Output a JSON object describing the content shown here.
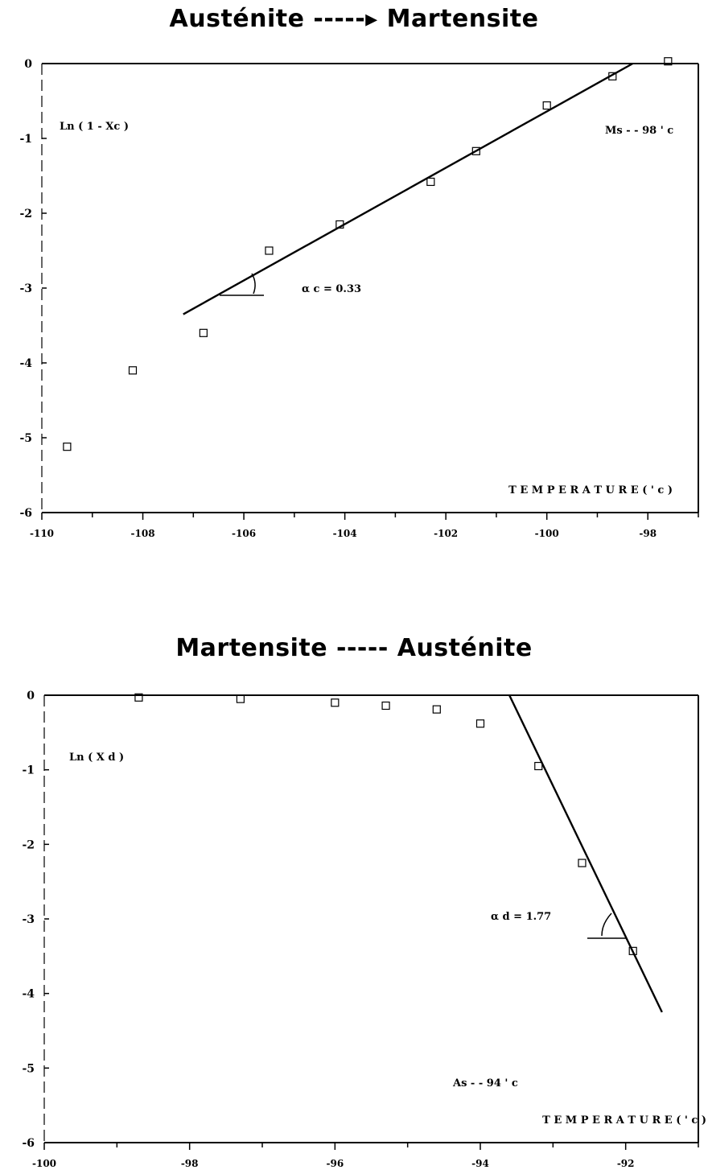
{
  "chart_data": [
    {
      "type": "scatter",
      "title": "Austénite -----▸ Martensite",
      "ylabel": "Ln ( 1 - Xc )",
      "xlabel": "T E M P E R A T U R E  ( ' c )",
      "xlim": [
        -110,
        -97
      ],
      "ylim": [
        -6,
        0
      ],
      "xticks": [
        -110,
        -108,
        -106,
        -104,
        -102,
        -100,
        -98
      ],
      "xtick_labels": [
        "-110",
        "-108",
        "-106",
        "-104",
        "-102",
        "-100",
        "-98"
      ],
      "yticks": [
        0,
        -1,
        -2,
        -3,
        -4,
        -5,
        -6
      ],
      "ytick_labels": [
        "0",
        "-1",
        "-2",
        "-3",
        "-4",
        "-5",
        "-6"
      ],
      "points": [
        [
          -109.5,
          -5.12
        ],
        [
          -108.2,
          -4.1
        ],
        [
          -106.8,
          -3.6
        ],
        [
          -105.5,
          -2.5
        ],
        [
          -104.1,
          -2.15
        ],
        [
          -102.3,
          -1.58
        ],
        [
          -101.4,
          -1.17
        ],
        [
          -100.0,
          -0.56
        ],
        [
          -98.7,
          -0.17
        ],
        [
          -97.6,
          0.03
        ]
      ],
      "fit_line": [
        [
          -107.2,
          -3.35
        ],
        [
          -98.3,
          0.0
        ]
      ],
      "annotations": {
        "alpha": "α c = 0.33",
        "ms": "Ms - - 98 ' c"
      }
    },
    {
      "type": "scatter",
      "title": "Martensite -----   Austénite",
      "ylabel": "Ln ( X d )",
      "xlabel": "T E M P E R A T U R E  ( ' c )",
      "xlim": [
        -100,
        -91
      ],
      "ylim": [
        -6,
        0
      ],
      "xticks": [
        -100,
        -98,
        -96,
        -94,
        -92
      ],
      "xtick_labels": [
        "-100",
        "-98",
        "-96",
        "-94",
        "-92"
      ],
      "yticks": [
        0,
        -1,
        -2,
        -3,
        -4,
        -5,
        -6
      ],
      "ytick_labels": [
        "0",
        "-1",
        "-2",
        "-3",
        "-4",
        "-5",
        "-6"
      ],
      "points": [
        [
          -98.7,
          -0.03
        ],
        [
          -97.3,
          -0.05
        ],
        [
          -96.0,
          -0.1
        ],
        [
          -95.3,
          -0.14
        ],
        [
          -94.6,
          -0.19
        ],
        [
          -94.0,
          -0.38
        ],
        [
          -93.2,
          -0.95
        ],
        [
          -92.6,
          -2.25
        ],
        [
          -91.9,
          -3.43
        ]
      ],
      "fit_line": [
        [
          -93.6,
          0.0
        ],
        [
          -91.5,
          -4.25
        ]
      ],
      "annotations": {
        "alpha": "α d = 1.77",
        "as": "As - - 94 ' c"
      }
    }
  ]
}
